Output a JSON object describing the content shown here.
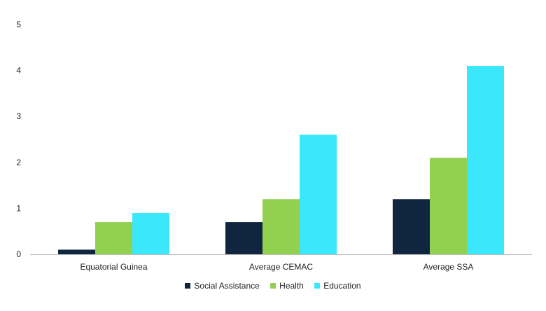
{
  "chart_data": {
    "type": "bar",
    "title": "",
    "xlabel": "",
    "ylabel": "",
    "categories": [
      "Equatorial Guinea",
      "Average CEMAC",
      "Average SSA"
    ],
    "series": [
      {
        "name": "Social Assistance",
        "color": "#0f2540",
        "values": [
          0.1,
          0.7,
          1.2
        ]
      },
      {
        "name": "Health",
        "color": "#92d050",
        "values": [
          0.7,
          1.2,
          2.1
        ]
      },
      {
        "name": "Education",
        "color": "#3ae7fb",
        "values": [
          0.9,
          2.6,
          4.1
        ]
      }
    ],
    "yticks": [
      "0",
      "1",
      "2",
      "3",
      "4",
      "5"
    ],
    "ylim": [
      0,
      5
    ],
    "grid": false,
    "legend_position": "bottom"
  }
}
